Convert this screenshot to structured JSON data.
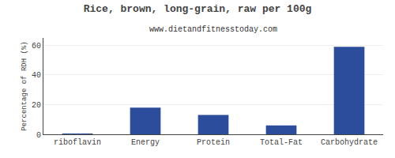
{
  "chart_data": {
    "type": "bar",
    "title": "Rice, brown, long-grain, raw per 100g",
    "subtitle": "www.dietandfitnesstoday.com",
    "categories": [
      "riboflavin",
      "Energy",
      "Protein",
      "Total-Fat",
      "Carbohydrate"
    ],
    "values": [
      0.5,
      18,
      13,
      6,
      59
    ],
    "color": "#2b4d9c",
    "ylabel": "Percentage of RDH (%)",
    "ylim": [
      0,
      65
    ],
    "yticks": [
      0,
      20,
      40,
      60
    ],
    "grid": true
  }
}
